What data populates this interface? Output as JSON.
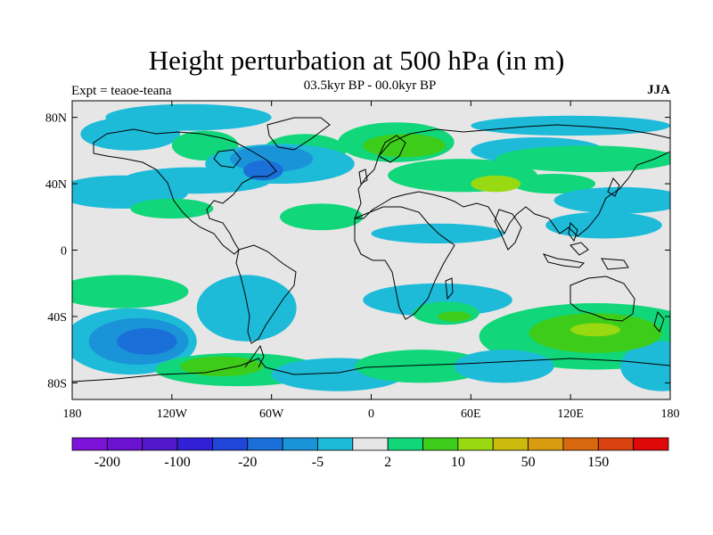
{
  "title": "Height perturbation at 500 hPa (in m)",
  "subtitle": "03.5kyr BP - 00.0kyr BP",
  "left_label": "Expt = teaoe-teana",
  "right_label": "JJA",
  "chart_data": {
    "type": "heatmap",
    "projection": "cylindrical-equidistant",
    "lon_range": [
      -180,
      180
    ],
    "lat_range": [
      -90,
      90
    ],
    "x_ticks": [
      {
        "value": -180,
        "label": "180"
      },
      {
        "value": -120,
        "label": "120W"
      },
      {
        "value": -60,
        "label": "60W"
      },
      {
        "value": 0,
        "label": "0"
      },
      {
        "value": 60,
        "label": "60E"
      },
      {
        "value": 120,
        "label": "120E"
      },
      {
        "value": 180,
        "label": "180"
      }
    ],
    "y_ticks": [
      {
        "value": 80,
        "label": "80N"
      },
      {
        "value": 40,
        "label": "40N"
      },
      {
        "value": 0,
        "label": "0"
      },
      {
        "value": -40,
        "label": "40S"
      },
      {
        "value": -80,
        "label": "80S"
      }
    ],
    "colorbar": {
      "colors": [
        "#7d12d9",
        "#6a12d0",
        "#5218cc",
        "#3020d6",
        "#1f46d8",
        "#1a6fd8",
        "#1a93d8",
        "#1ebbd9",
        "#e6e6e6",
        "#11d67a",
        "#3ecc1a",
        "#99d911",
        "#ccbb0d",
        "#d99b10",
        "#d9680f",
        "#d9420f",
        "#e00808"
      ],
      "tick_labels": [
        "-200",
        "-100",
        "-20",
        "-5",
        "2",
        "10",
        "50",
        "150"
      ],
      "tick_index": [
        1,
        3,
        5,
        7,
        9,
        11,
        13,
        15
      ]
    },
    "anomaly_regions": [
      {
        "lon": -110,
        "lat": 80,
        "rlon": 50,
        "rlat": 8,
        "level": -1
      },
      {
        "lon": -145,
        "lat": 70,
        "rlon": 30,
        "rlat": 10,
        "level": -1
      },
      {
        "lon": -100,
        "lat": 63,
        "rlon": 20,
        "rlat": 9,
        "level": 1
      },
      {
        "lon": -40,
        "lat": 60,
        "rlon": 25,
        "rlat": 10,
        "level": 1
      },
      {
        "lon": -55,
        "lat": 52,
        "rlon": 45,
        "rlat": 12,
        "level": -1
      },
      {
        "lon": -60,
        "lat": 55,
        "rlon": 25,
        "rlat": 8,
        "level": -2
      },
      {
        "lon": -65,
        "lat": 48,
        "rlon": 12,
        "rlat": 6,
        "level": -3
      },
      {
        "lon": -105,
        "lat": 42,
        "rlon": 45,
        "rlat": 8,
        "level": -1
      },
      {
        "lon": -150,
        "lat": 35,
        "rlon": 40,
        "rlat": 10,
        "level": -1
      },
      {
        "lon": -120,
        "lat": 25,
        "rlon": 25,
        "rlat": 6,
        "level": 1
      },
      {
        "lon": 15,
        "lat": 65,
        "rlon": 35,
        "rlat": 12,
        "level": 1
      },
      {
        "lon": 20,
        "lat": 63,
        "rlon": 25,
        "rlat": 7,
        "level": 2
      },
      {
        "lon": 55,
        "lat": 45,
        "rlon": 45,
        "rlat": 10,
        "level": 1
      },
      {
        "lon": 75,
        "lat": 40,
        "rlon": 15,
        "rlat": 5,
        "level": 3
      },
      {
        "lon": 100,
        "lat": 60,
        "rlon": 40,
        "rlat": 8,
        "level": -1
      },
      {
        "lon": 130,
        "lat": 55,
        "rlon": 55,
        "rlat": 8,
        "level": 1
      },
      {
        "lon": 110,
        "lat": 40,
        "rlon": 25,
        "rlat": 6,
        "level": 1
      },
      {
        "lon": 150,
        "lat": 30,
        "rlon": 40,
        "rlat": 8,
        "level": -1
      },
      {
        "lon": 120,
        "lat": 75,
        "rlon": 60,
        "rlat": 6,
        "level": -1
      },
      {
        "lon": -30,
        "lat": 20,
        "rlon": 25,
        "rlat": 8,
        "level": 1
      },
      {
        "lon": 40,
        "lat": 10,
        "rlon": 40,
        "rlat": 6,
        "level": -1
      },
      {
        "lon": 140,
        "lat": 15,
        "rlon": 35,
        "rlat": 8,
        "level": -1
      },
      {
        "lon": -150,
        "lat": -25,
        "rlon": 40,
        "rlat": 10,
        "level": 1
      },
      {
        "lon": -75,
        "lat": -35,
        "rlon": 30,
        "rlat": 20,
        "level": -1
      },
      {
        "lon": 40,
        "lat": -30,
        "rlon": 45,
        "rlat": 10,
        "level": -1
      },
      {
        "lon": 45,
        "lat": -38,
        "rlon": 20,
        "rlat": 7,
        "level": 1
      },
      {
        "lon": 50,
        "lat": -40,
        "rlon": 10,
        "rlat": 3,
        "level": 2
      },
      {
        "lon": 135,
        "lat": -52,
        "rlon": 70,
        "rlat": 20,
        "level": 1
      },
      {
        "lon": 135,
        "lat": -50,
        "rlon": 40,
        "rlat": 12,
        "level": 2
      },
      {
        "lon": 135,
        "lat": -48,
        "rlon": 15,
        "rlat": 4,
        "level": 3
      },
      {
        "lon": -145,
        "lat": -55,
        "rlon": 40,
        "rlat": 20,
        "level": -1
      },
      {
        "lon": -140,
        "lat": -55,
        "rlon": 30,
        "rlat": 14,
        "level": -2
      },
      {
        "lon": -135,
        "lat": -55,
        "rlon": 18,
        "rlat": 8,
        "level": -3
      },
      {
        "lon": -80,
        "lat": -72,
        "rlon": 50,
        "rlat": 10,
        "level": 1
      },
      {
        "lon": -90,
        "lat": -70,
        "rlon": 25,
        "rlat": 6,
        "level": 2
      },
      {
        "lon": -20,
        "lat": -75,
        "rlon": 40,
        "rlat": 10,
        "level": -1
      },
      {
        "lon": 30,
        "lat": -70,
        "rlon": 40,
        "rlat": 10,
        "level": 1
      },
      {
        "lon": 80,
        "lat": -70,
        "rlon": 30,
        "rlat": 10,
        "level": -1
      },
      {
        "lon": 175,
        "lat": -70,
        "rlon": 25,
        "rlat": 15,
        "level": -1
      }
    ]
  }
}
